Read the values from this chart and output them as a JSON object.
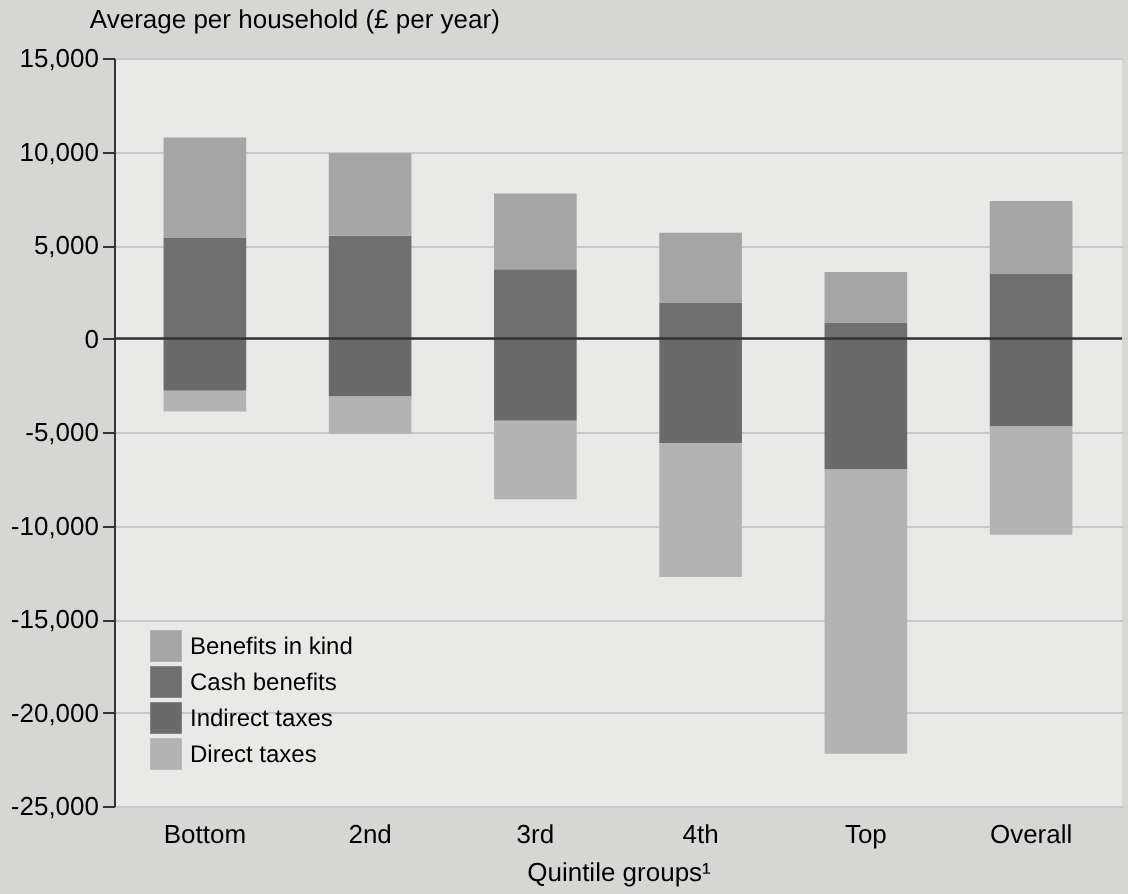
{
  "chart_data": {
    "type": "bar",
    "title": "Average per household (£ per year)",
    "xlabel": "Quintile groups¹",
    "categories": [
      "Bottom",
      "2nd",
      "3rd",
      "4th",
      "Top",
      "Overall"
    ],
    "stacked": true,
    "series": [
      {
        "name": "Cash benefits",
        "color": "#6f6f6f",
        "values": [
          5400,
          5500,
          3700,
          1900,
          850,
          3450
        ]
      },
      {
        "name": "Benefits in kind",
        "color": "#a5a5a5",
        "values": [
          5350,
          4400,
          4050,
          3750,
          2700,
          3900
        ]
      },
      {
        "name": "Indirect taxes",
        "color": "#6a6a6a",
        "values": [
          -2800,
          -3100,
          -4400,
          -5600,
          -7000,
          -4700
        ]
      },
      {
        "name": "Direct taxes",
        "color": "#b3b3b3",
        "values": [
          -1100,
          -2000,
          -4200,
          -7150,
          -15200,
          -5800
        ]
      }
    ],
    "ylim": [
      -25000,
      15000
    ],
    "yticks": [
      {
        "value": -25000,
        "label": "-25,000"
      },
      {
        "value": -20000,
        "label": "-20,000"
      },
      {
        "value": -15000,
        "label": "-15,000"
      },
      {
        "value": -10000,
        "label": "-10,000"
      },
      {
        "value": -5000,
        "label": "-5,000"
      },
      0,
      {
        "value": 5000,
        "label": "5,000"
      },
      {
        "value": 10000,
        "label": "10,000"
      },
      {
        "value": 15000,
        "label": "15,000"
      }
    ],
    "grid": "y",
    "legend": "bottom left",
    "ref_lines": [
      {
        "axis": "y",
        "value": 0,
        "color": "#333333"
      }
    ]
  }
}
